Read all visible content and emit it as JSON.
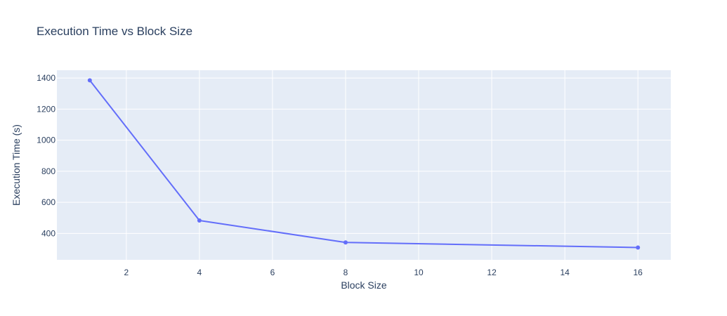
{
  "chart_data": {
    "type": "line",
    "title": "Execution Time vs Block Size",
    "xlabel": "Block Size",
    "ylabel": "Execution Time (s)",
    "xlim": [
      0.1,
      16.9
    ],
    "ylim": [
      230,
      1450
    ],
    "x_ticks": [
      2,
      4,
      6,
      8,
      10,
      12,
      14,
      16
    ],
    "y_ticks": [
      400,
      600,
      800,
      1000,
      1200,
      1400
    ],
    "grid": true,
    "legend": "none",
    "series": [
      {
        "x": [
          1,
          4,
          8,
          16
        ],
        "values": [
          1385,
          483,
          342,
          309
        ],
        "mode": "lines+markers"
      }
    ],
    "colors": {
      "plot_background": "#e5ecf6",
      "grid": "#ffffff",
      "line": "#636efa",
      "text": "#2a3f5f"
    }
  }
}
